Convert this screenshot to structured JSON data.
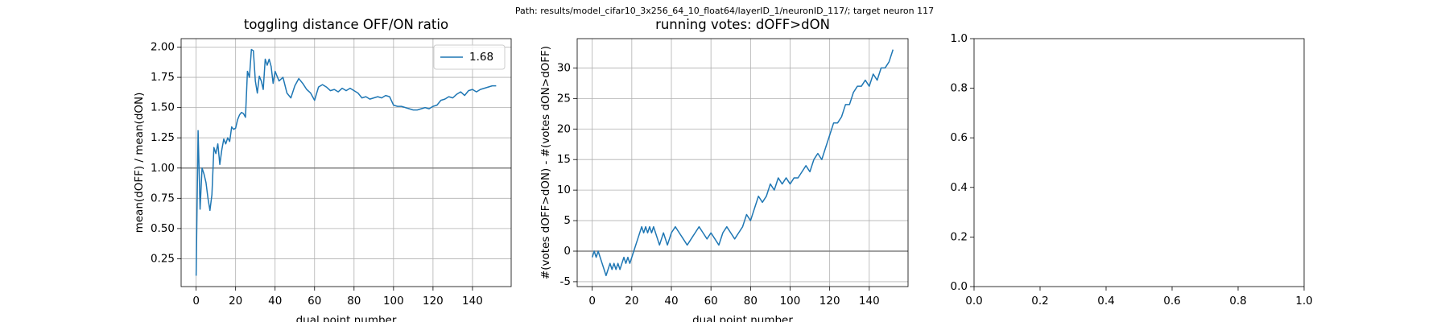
{
  "title": "Path: results/model_cifar10_3x256_64_10_float64/layerID_1/neuronID_117/; target neuron 117",
  "chart_data": [
    {
      "type": "line",
      "title": "toggling distance OFF/ON ratio",
      "xlabel": "dual point number",
      "ylabel": "mean(dOFF) / mean(dON)",
      "x": [
        0,
        1,
        2,
        3,
        4,
        5,
        6,
        7,
        8,
        9,
        10,
        11,
        12,
        13,
        14,
        15,
        16,
        17,
        18,
        19,
        20,
        21,
        22,
        23,
        24,
        25,
        26,
        27,
        28,
        29,
        30,
        31,
        32,
        33,
        34,
        35,
        36,
        37,
        38,
        39,
        40,
        42,
        44,
        46,
        48,
        50,
        52,
        54,
        56,
        58,
        60,
        62,
        64,
        66,
        68,
        70,
        72,
        74,
        76,
        78,
        80,
        82,
        84,
        86,
        88,
        90,
        92,
        94,
        96,
        98,
        100,
        102,
        104,
        106,
        108,
        110,
        112,
        114,
        116,
        118,
        120,
        122,
        124,
        126,
        128,
        130,
        132,
        134,
        136,
        138,
        140,
        142,
        144,
        146,
        148,
        150,
        152
      ],
      "series": [
        {
          "name": "1.68",
          "color": "#1f77b4",
          "values": [
            0.11,
            1.31,
            0.66,
            1.0,
            0.95,
            0.88,
            0.75,
            0.65,
            0.78,
            1.17,
            1.12,
            1.2,
            1.03,
            1.15,
            1.24,
            1.2,
            1.25,
            1.22,
            1.34,
            1.32,
            1.33,
            1.4,
            1.44,
            1.46,
            1.45,
            1.42,
            1.8,
            1.75,
            1.98,
            1.97,
            1.72,
            1.62,
            1.76,
            1.72,
            1.65,
            1.9,
            1.85,
            1.9,
            1.84,
            1.7,
            1.8,
            1.72,
            1.75,
            1.62,
            1.58,
            1.68,
            1.74,
            1.7,
            1.65,
            1.62,
            1.56,
            1.67,
            1.69,
            1.67,
            1.64,
            1.65,
            1.63,
            1.66,
            1.64,
            1.66,
            1.64,
            1.62,
            1.58,
            1.59,
            1.57,
            1.58,
            1.59,
            1.58,
            1.6,
            1.59,
            1.52,
            1.51,
            1.51,
            1.5,
            1.49,
            1.48,
            1.48,
            1.49,
            1.5,
            1.49,
            1.51,
            1.52,
            1.56,
            1.57,
            1.59,
            1.58,
            1.61,
            1.63,
            1.6,
            1.64,
            1.65,
            1.63,
            1.65,
            1.66,
            1.67,
            1.68,
            1.68
          ]
        }
      ],
      "hline": 1,
      "hline_color": "#808080",
      "xlim": [
        -7.6,
        159.6
      ],
      "xticks": [
        0,
        20,
        40,
        60,
        80,
        100,
        120,
        140
      ],
      "ylim": [
        0.02,
        2.07
      ],
      "yticks": [
        {
          "value": 0.25,
          "label": "0.25"
        },
        {
          "value": 0.5,
          "label": "0.50"
        },
        {
          "value": 0.75,
          "label": "0.75"
        },
        {
          "value": 1,
          "label": "1.00"
        },
        {
          "value": 1.25,
          "label": "1.25"
        },
        {
          "value": 1.5,
          "label": "1.50"
        },
        {
          "value": 1.75,
          "label": "1.75"
        },
        {
          "value": 2,
          "label": "2.00"
        }
      ],
      "grid": true,
      "legend": "upper-right"
    },
    {
      "type": "line",
      "title": "running votes: dOFF>dON",
      "xlabel": "dual point number",
      "ylabel": "#(votes dOFF>dON) - #(votes dON>dOFF)",
      "x": [
        0,
        1,
        2,
        3,
        4,
        5,
        6,
        7,
        8,
        9,
        10,
        11,
        12,
        13,
        14,
        15,
        16,
        17,
        18,
        19,
        20,
        21,
        22,
        23,
        24,
        25,
        26,
        27,
        28,
        29,
        30,
        31,
        32,
        33,
        34,
        35,
        36,
        37,
        38,
        39,
        40,
        42,
        44,
        46,
        48,
        50,
        52,
        54,
        56,
        58,
        60,
        62,
        64,
        66,
        68,
        70,
        72,
        74,
        76,
        78,
        80,
        82,
        84,
        86,
        88,
        90,
        92,
        94,
        96,
        98,
        100,
        102,
        104,
        106,
        108,
        110,
        112,
        114,
        116,
        118,
        120,
        122,
        124,
        126,
        128,
        130,
        132,
        134,
        136,
        138,
        140,
        142,
        144,
        146,
        148,
        150,
        152
      ],
      "series": [
        {
          "color": "#1f77b4",
          "values": [
            -1,
            0,
            -1,
            0,
            -1,
            -2,
            -3,
            -4,
            -3,
            -2,
            -3,
            -2,
            -3,
            -2,
            -3,
            -2,
            -1,
            -2,
            -1,
            -2,
            -1,
            0,
            1,
            2,
            3,
            4,
            3,
            4,
            3,
            4,
            3,
            4,
            3,
            2,
            1,
            2,
            3,
            2,
            1,
            2,
            3,
            4,
            3,
            2,
            1,
            2,
            3,
            4,
            3,
            2,
            3,
            2,
            1,
            3,
            4,
            3,
            2,
            3,
            4,
            6,
            5,
            7,
            9,
            8,
            9,
            11,
            10,
            12,
            11,
            12,
            11,
            12,
            12,
            13,
            14,
            13,
            15,
            16,
            15,
            17,
            19,
            21,
            21,
            22,
            24,
            24,
            26,
            27,
            27,
            28,
            27,
            29,
            28,
            30,
            30,
            31,
            33
          ]
        }
      ],
      "hline": 0,
      "hline_color": "#808080",
      "xlim": [
        -7.6,
        159.6
      ],
      "xticks": [
        0,
        20,
        40,
        60,
        80,
        100,
        120,
        140
      ],
      "ylim": [
        -5.8,
        34.8
      ],
      "yticks": [
        -5,
        0,
        5,
        10,
        15,
        20,
        25,
        30
      ],
      "grid": true
    },
    {
      "type": "empty",
      "xlim": [
        0,
        1
      ],
      "xticks": [
        {
          "value": 0,
          "label": "0.0"
        },
        {
          "value": 0.2,
          "label": "0.2"
        },
        {
          "value": 0.4,
          "label": "0.4"
        },
        {
          "value": 0.6,
          "label": "0.6"
        },
        {
          "value": 0.8,
          "label": "0.8"
        },
        {
          "value": 1,
          "label": "1.0"
        }
      ],
      "ylim": [
        0,
        1
      ],
      "yticks": [
        {
          "value": 0,
          "label": "0.0"
        },
        {
          "value": 0.2,
          "label": "0.2"
        },
        {
          "value": 0.4,
          "label": "0.4"
        },
        {
          "value": 0.6,
          "label": "0.6"
        },
        {
          "value": 0.8,
          "label": "0.8"
        },
        {
          "value": 1,
          "label": "1.0"
        }
      ],
      "grid": false
    }
  ]
}
